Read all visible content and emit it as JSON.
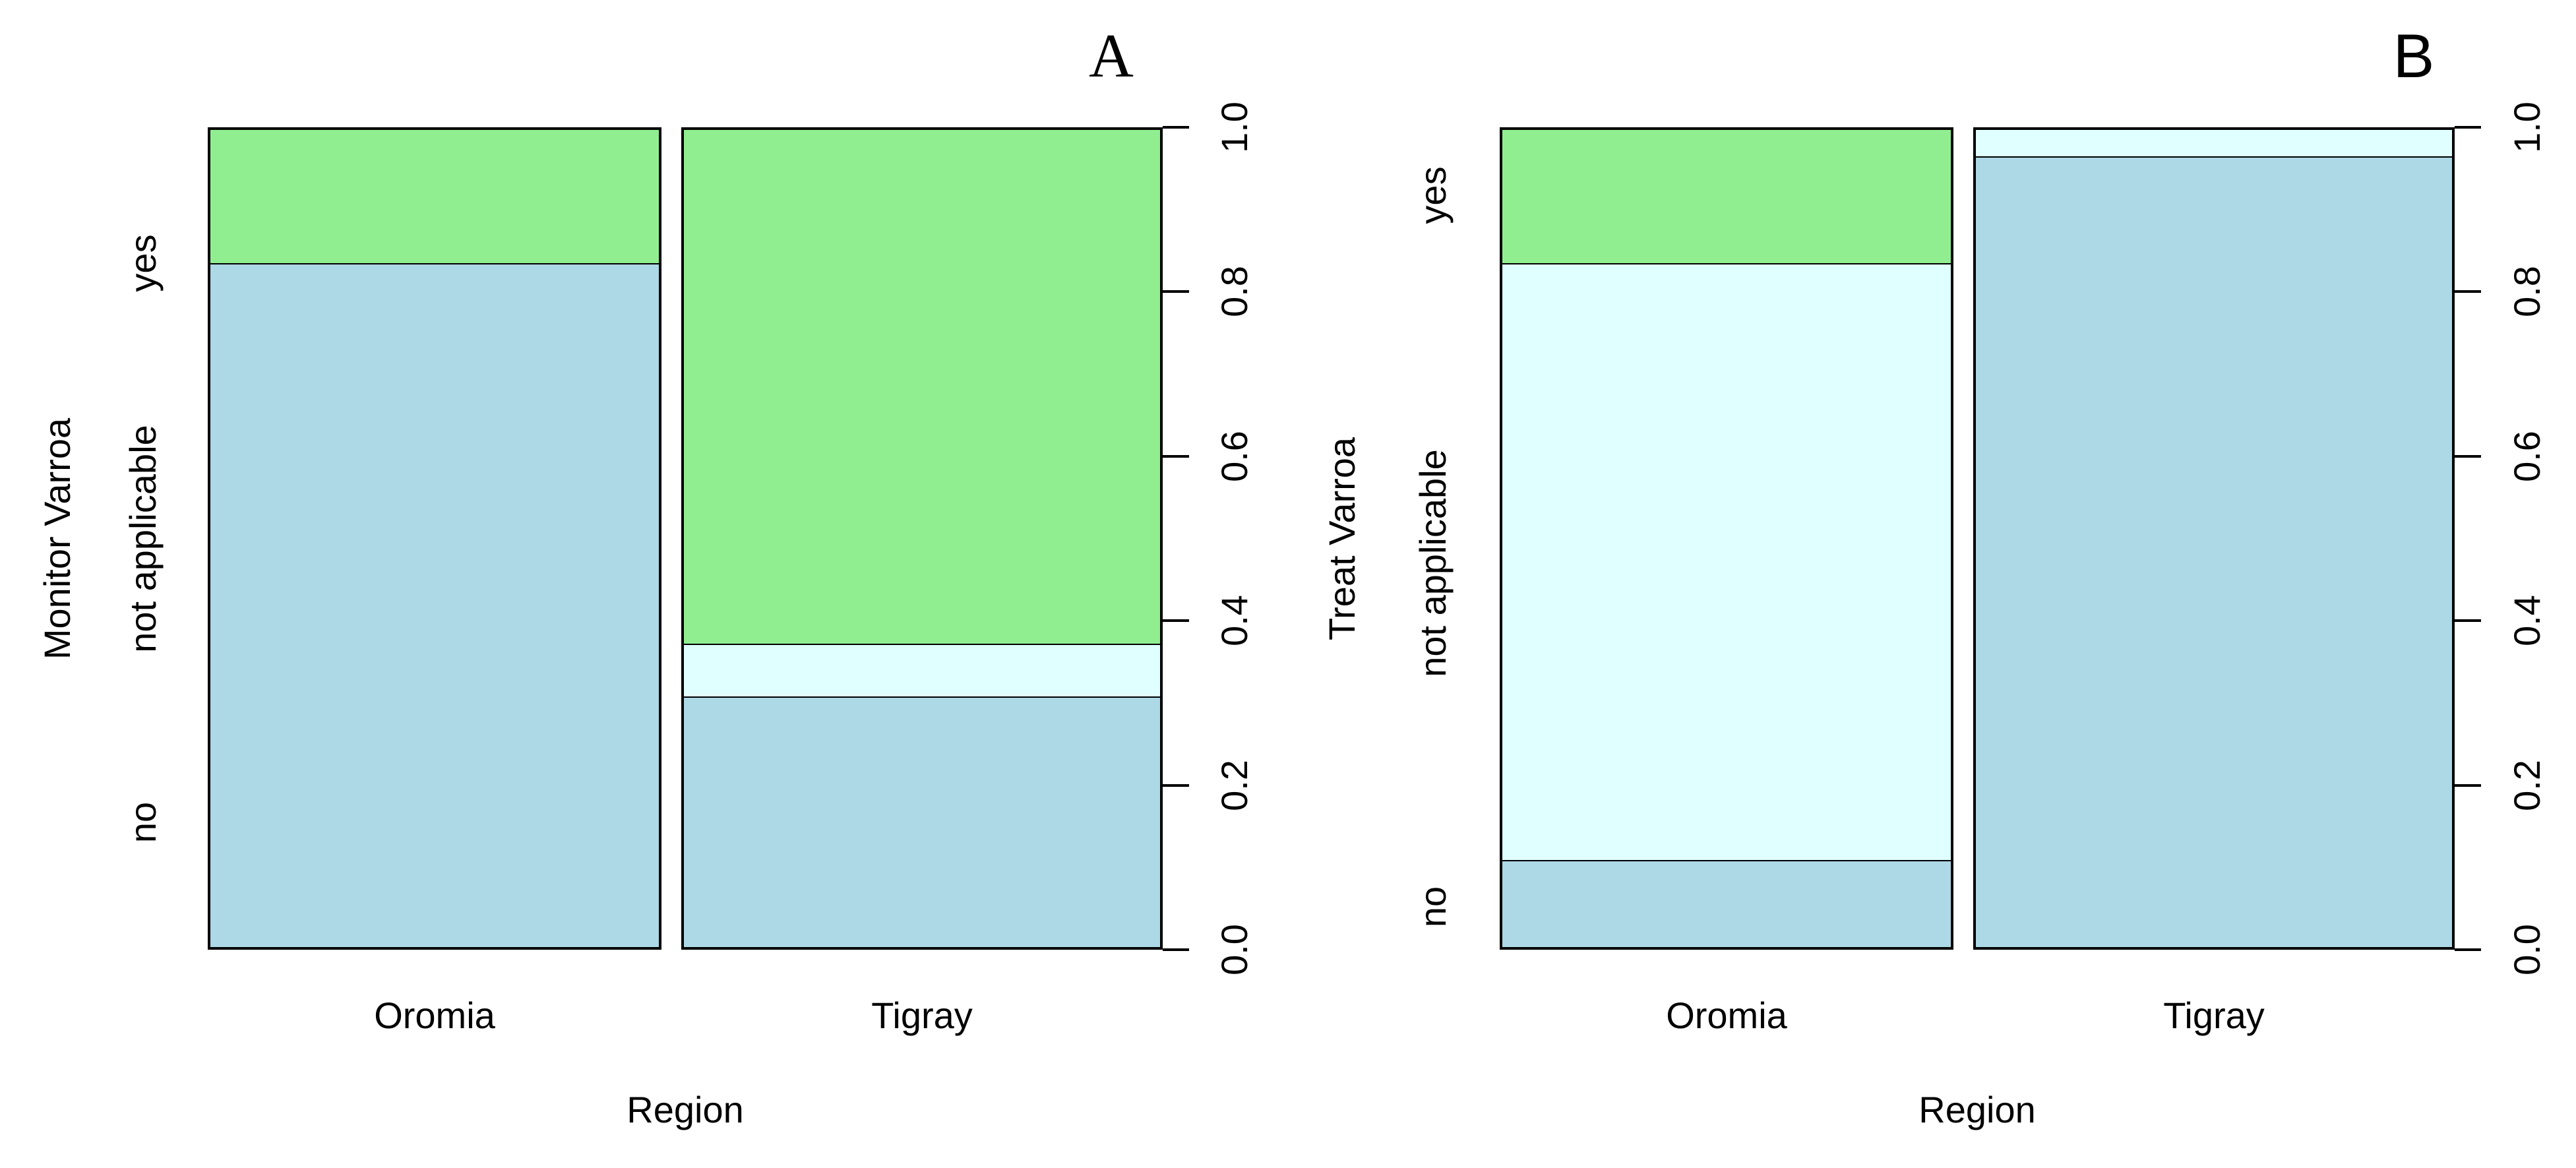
{
  "page": {
    "background": "#ffffff",
    "border_color": "#000000"
  },
  "chart_data": [
    {
      "type": "spineplot",
      "panel_label": "A",
      "xlabel": "Region",
      "ylabel": "Monitor Varroa",
      "x_categories": [
        "Oromia",
        "Tigray"
      ],
      "y_levels": [
        "no",
        "not applicable",
        "yes"
      ],
      "colors": {
        "no": "#ADD8E6",
        "not applicable": "#E0FFFF",
        "yes": "#90EE90"
      },
      "column_width_fractions": [
        0.485,
        0.515
      ],
      "proportions": {
        "Oromia": {
          "no": 0.835,
          "not applicable": 0.0,
          "yes": 0.165
        },
        "Tigray": {
          "no": 0.305,
          "not applicable": 0.065,
          "yes": 0.63
        }
      },
      "prob_axis_ticks": [
        "0.0",
        "0.2",
        "0.4",
        "0.6",
        "0.8",
        "1.0"
      ],
      "ylim": [
        0,
        1
      ],
      "grid": false,
      "category_label_positions": {
        "no": 0.155,
        "not applicable": 0.5,
        "yes": 0.835
      }
    },
    {
      "type": "spineplot",
      "panel_label": "B",
      "xlabel": "Region",
      "ylabel": "Treat Varroa",
      "x_categories": [
        "Oromia",
        "Tigray"
      ],
      "y_levels": [
        "no",
        "not applicable",
        "yes"
      ],
      "colors": {
        "no": "#ADD8E6",
        "not applicable": "#E0FFFF",
        "yes": "#90EE90"
      },
      "column_width_fractions": [
        0.485,
        0.515
      ],
      "proportions": {
        "Oromia": {
          "no": 0.105,
          "not applicable": 0.73,
          "yes": 0.165
        },
        "Tigray": {
          "no": 0.966,
          "not applicable": 0.034,
          "yes": 0.0
        }
      },
      "prob_axis_ticks": [
        "0.0",
        "0.2",
        "0.4",
        "0.6",
        "0.8",
        "1.0"
      ],
      "ylim": [
        0,
        1
      ],
      "grid": false,
      "category_label_positions": {
        "no": 0.0525,
        "not applicable": 0.47,
        "yes": 0.9175
      }
    }
  ]
}
